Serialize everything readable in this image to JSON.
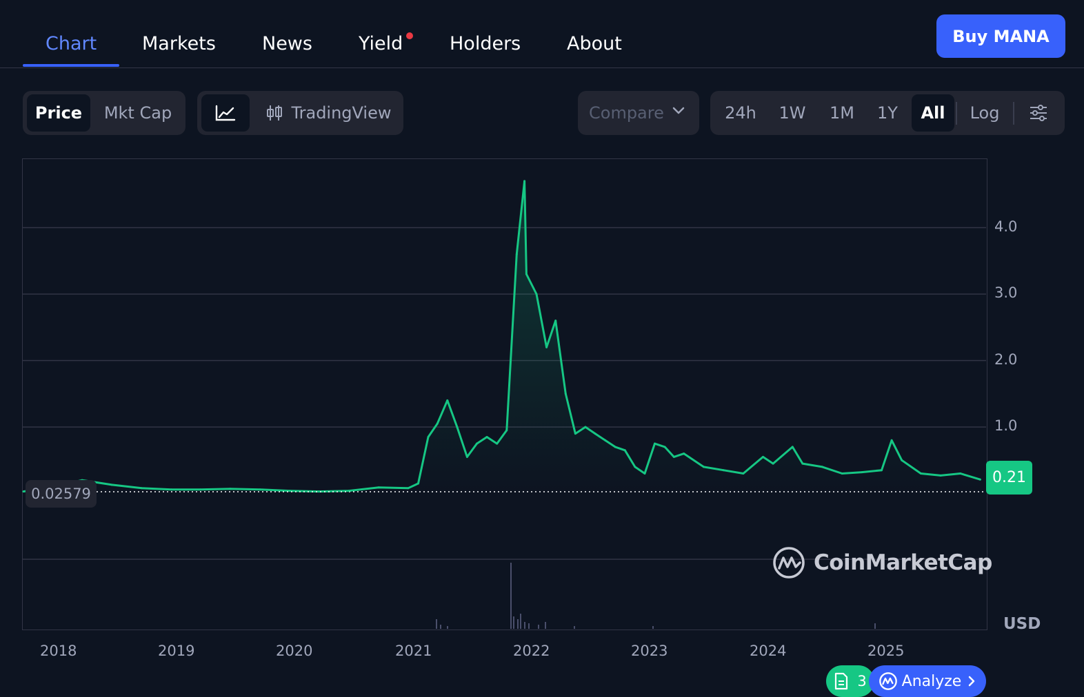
{
  "nav": {
    "tabs": [
      {
        "label": "Chart",
        "active": true
      },
      {
        "label": "Markets"
      },
      {
        "label": "News"
      },
      {
        "label": "Yield",
        "dot": true
      },
      {
        "label": "Holders"
      },
      {
        "label": "About"
      }
    ],
    "buy_label": "Buy MANA"
  },
  "controls": {
    "metric": [
      "Price",
      "Mkt Cap"
    ],
    "tradingview_label": "TradingView",
    "compare_label": "Compare",
    "ranges": [
      "24h",
      "1W",
      "1M",
      "1Y",
      "All"
    ],
    "active_range": "All",
    "log_label": "Log"
  },
  "chart": {
    "y_ticks": [
      "4.0",
      "3.0",
      "2.0",
      "1.0"
    ],
    "x_ticks": [
      "2018",
      "2019",
      "2020",
      "2021",
      "2022",
      "2023",
      "2024",
      "2025"
    ],
    "currency_label": "USD",
    "start_price_label": "0.02579",
    "current_price_label": "0.21",
    "watermark": "CoinMarketCap",
    "colors": {
      "line": "#16c784",
      "down": "#ea3943",
      "grid": "#323546"
    }
  },
  "chart_data": {
    "type": "area",
    "series": [
      {
        "x": [
          "2017-09",
          "2017-12",
          "2018-03",
          "2018-06",
          "2018-09",
          "2018-12",
          "2019-03",
          "2019-06",
          "2019-09",
          "2019-12",
          "2020-03",
          "2020-06",
          "2020-09",
          "2020-12",
          "2021-01",
          "2021-02",
          "2021-03",
          "2021-04",
          "2021-05",
          "2021-06",
          "2021-07",
          "2021-08",
          "2021-09",
          "2021-10",
          "2021-11",
          "2021-11-25",
          "2021-12",
          "2022-01",
          "2022-02",
          "2022-03",
          "2022-04",
          "2022-05",
          "2022-06",
          "2022-07",
          "2022-08",
          "2022-09",
          "2022-10",
          "2022-11",
          "2022-12",
          "2023-01",
          "2023-02",
          "2023-03",
          "2023-04",
          "2023-06",
          "2023-08",
          "2023-10",
          "2023-12",
          "2024-01",
          "2024-03",
          "2024-04",
          "2024-06",
          "2024-08",
          "2024-10",
          "2024-12",
          "2025-01",
          "2025-02",
          "2025-04",
          "2025-06",
          "2025-08",
          "2025-10"
        ],
        "values": [
          0.03,
          0.1,
          0.2,
          0.13,
          0.08,
          0.06,
          0.06,
          0.07,
          0.06,
          0.04,
          0.03,
          0.04,
          0.09,
          0.08,
          0.15,
          0.85,
          1.05,
          1.4,
          1.0,
          0.55,
          0.75,
          0.85,
          0.75,
          0.95,
          3.6,
          4.7,
          3.3,
          3.0,
          2.2,
          2.6,
          1.5,
          0.9,
          1.0,
          0.9,
          0.8,
          0.7,
          0.65,
          0.4,
          0.3,
          0.75,
          0.7,
          0.55,
          0.6,
          0.4,
          0.35,
          0.3,
          0.55,
          0.45,
          0.7,
          0.45,
          0.4,
          0.3,
          0.32,
          0.35,
          0.8,
          0.5,
          0.3,
          0.27,
          0.3,
          0.21
        ]
      }
    ],
    "xlabel": "",
    "ylabel": "",
    "ylim": [
      0,
      4.8
    ],
    "y_unit": "USD",
    "grid": true,
    "start_value": 0.02579,
    "current_value": 0.21
  }
}
